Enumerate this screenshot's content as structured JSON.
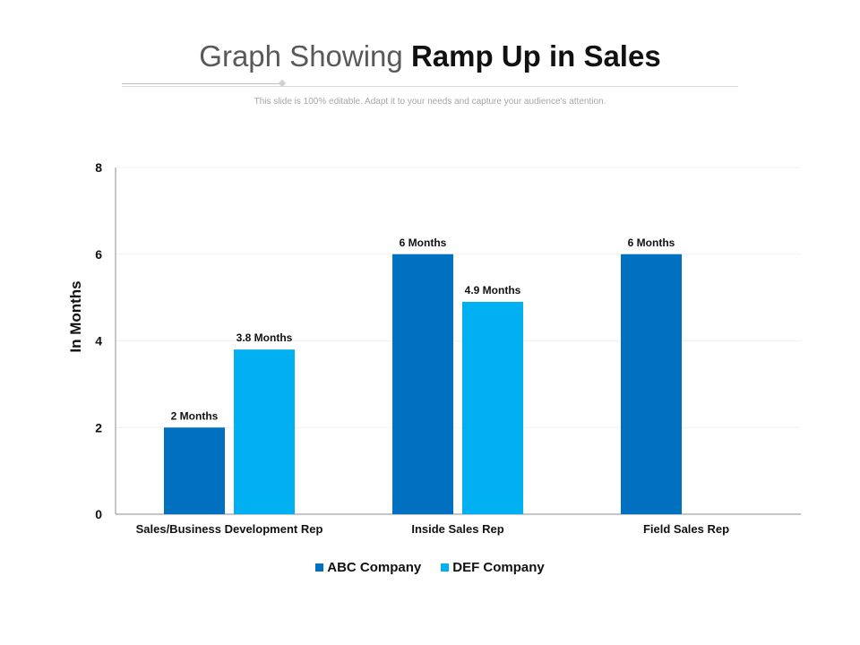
{
  "header": {
    "title_light": "Graph Showing ",
    "title_bold": "Ramp Up in Sales",
    "subtitle": "This slide is 100% editable. Adapt it to your needs and capture your audience's attention."
  },
  "colors": {
    "abc": "#0070c0",
    "def": "#00b0f0",
    "grid": "#f0f0f0",
    "axis": "#8c8c8c",
    "text": "#111111"
  },
  "chart_data": {
    "type": "bar",
    "title": "Graph Showing Ramp Up in Sales",
    "xlabel": "",
    "ylabel": "In Months",
    "ylim": [
      0,
      8
    ],
    "yticks": [
      0,
      2,
      4,
      6,
      8
    ],
    "grid": true,
    "legend_position": "bottom",
    "categories": [
      "Sales/Business  Development Rep",
      "Inside Sales Rep",
      "Field Sales Rep"
    ],
    "series": [
      {
        "name": "ABC Company",
        "values": [
          2,
          6,
          6
        ],
        "labels": [
          "2 Months",
          "6 Months",
          "6 Months"
        ]
      },
      {
        "name": "DEF Company",
        "values": [
          3.8,
          4.9,
          null
        ],
        "labels": [
          "3.8 Months",
          "4.9 Months",
          ""
        ]
      }
    ]
  }
}
